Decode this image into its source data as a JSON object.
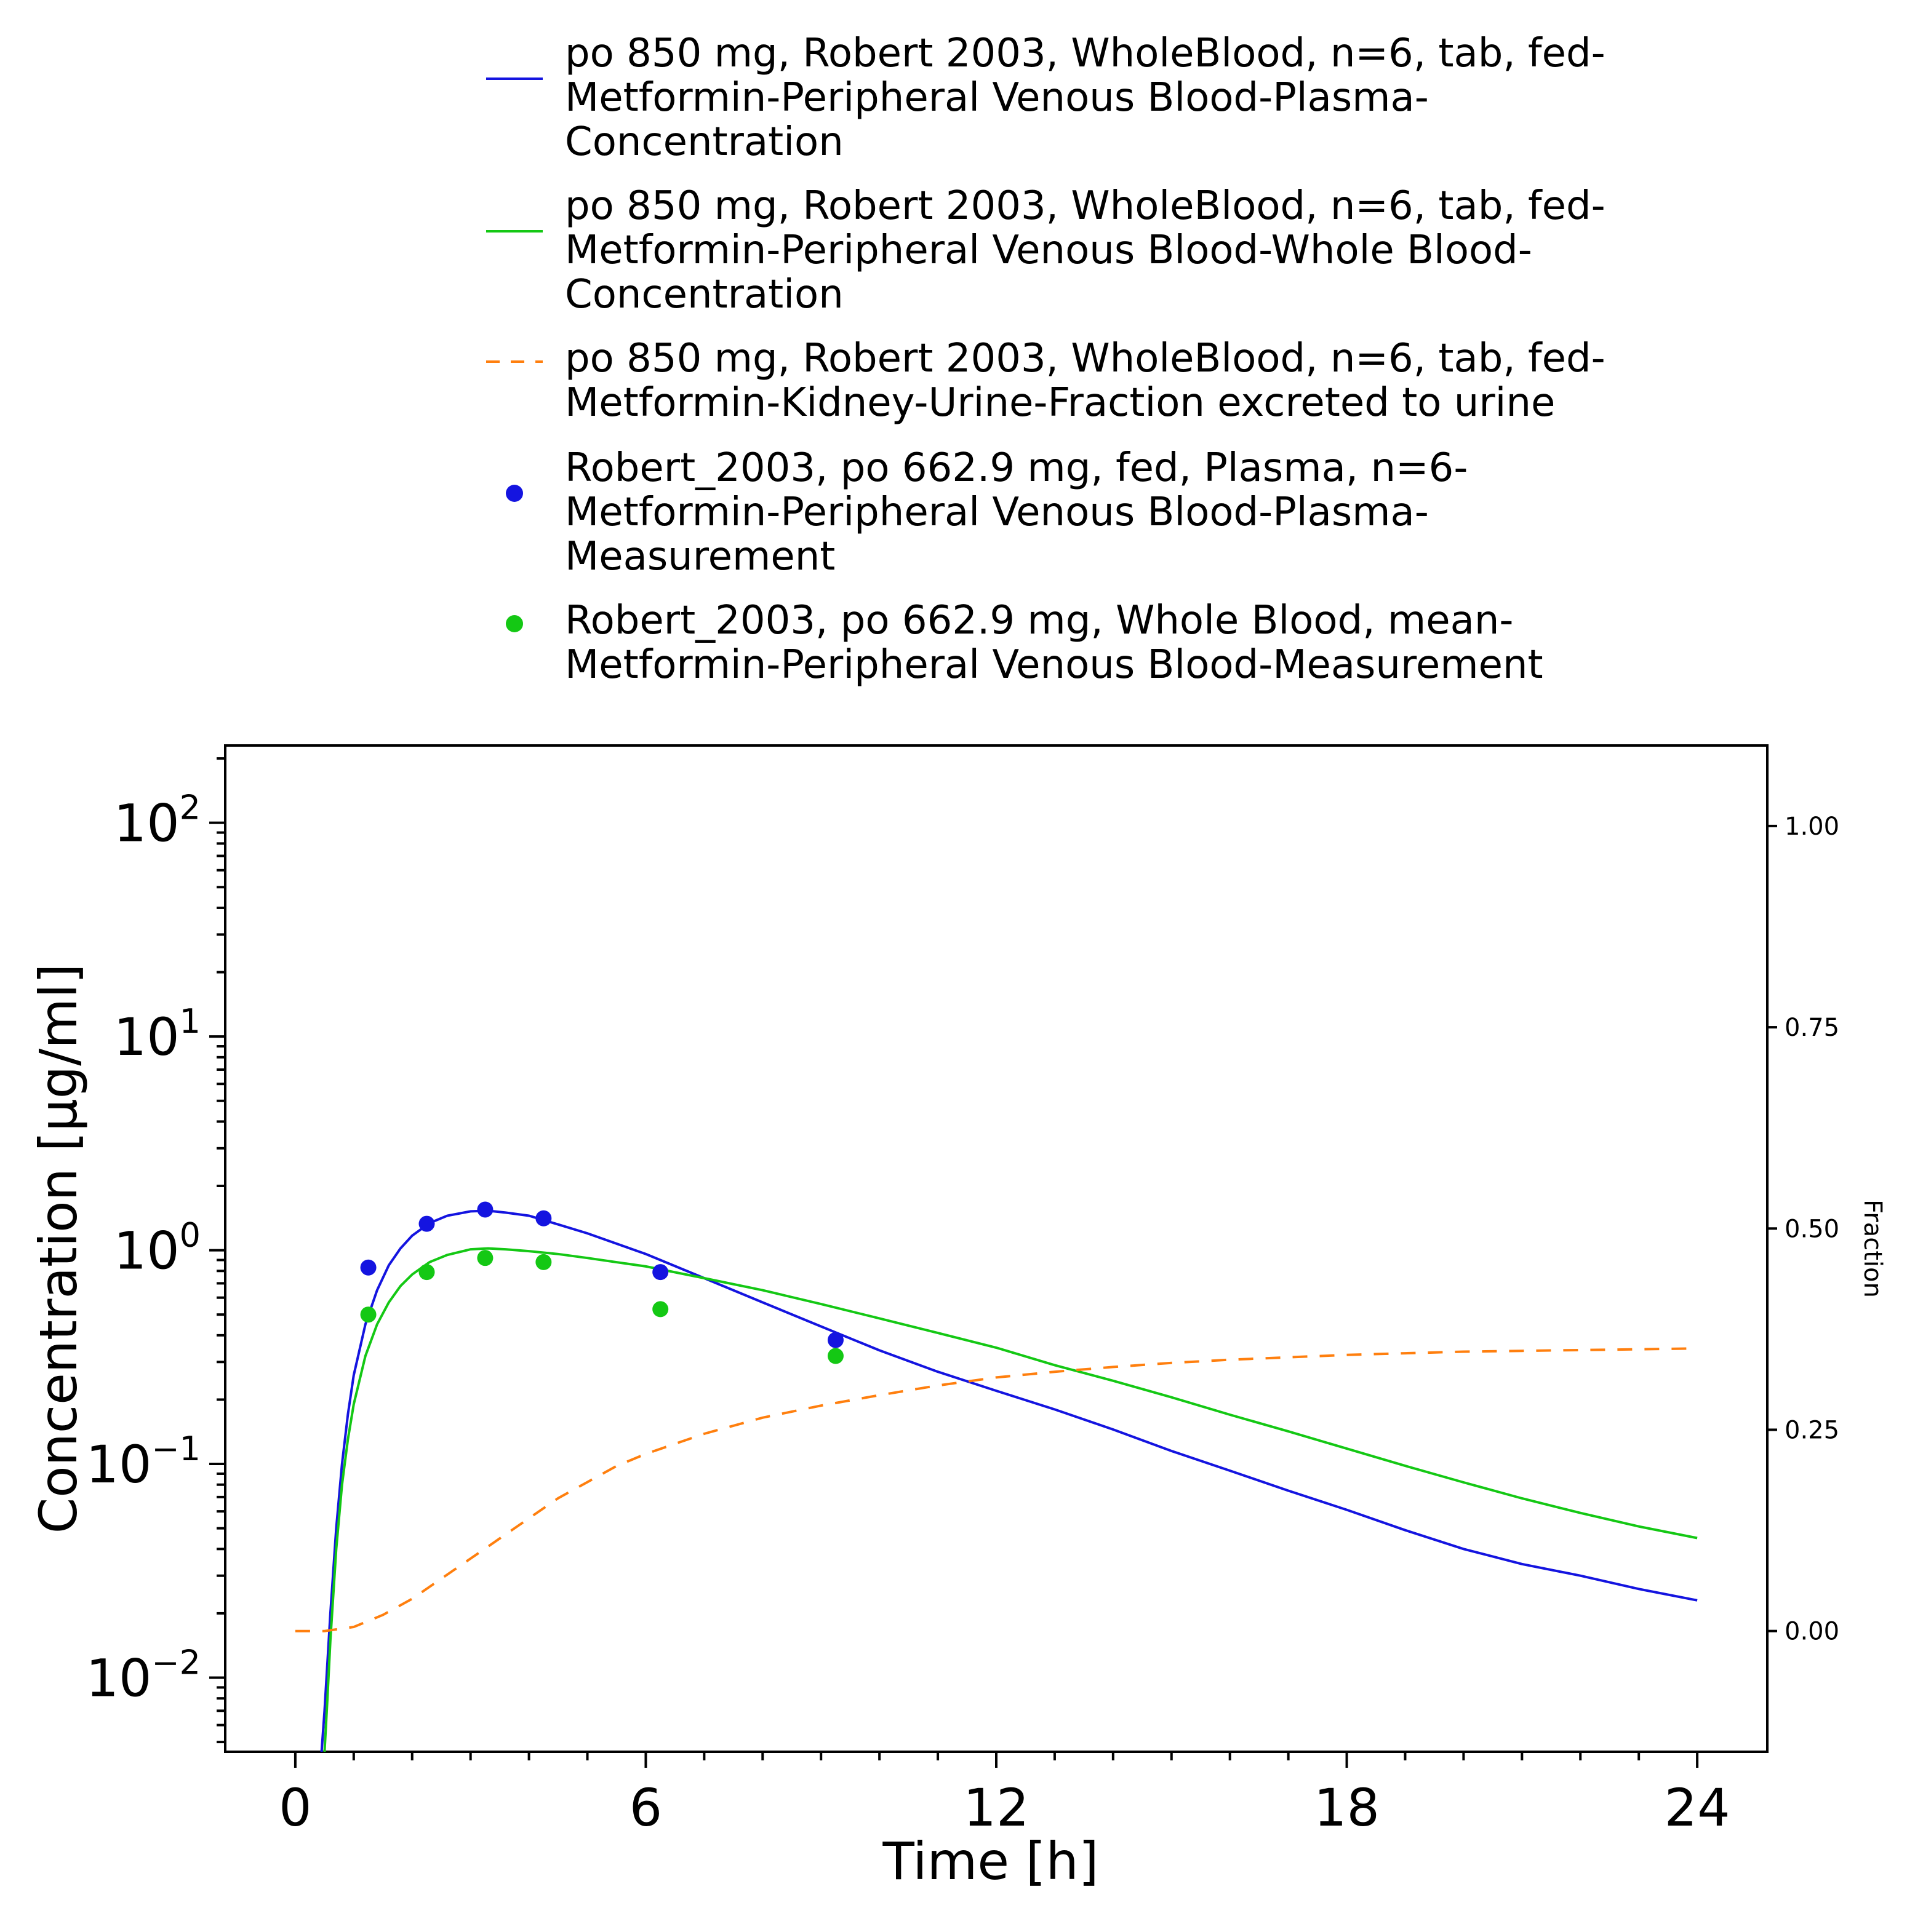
{
  "chart_data": {
    "type": "line",
    "xlabel": "Time [h]",
    "ylabel": "Concentration [µg/ml]",
    "y2label": "Fraction",
    "xlim": [
      -1.2,
      25.2
    ],
    "xticks": [
      "0",
      "6",
      "12",
      "18",
      "24"
    ],
    "xtick_values": [
      0,
      6,
      12,
      18,
      24
    ],
    "yscale": "log",
    "ylim": [
      0.0045,
      230
    ],
    "yticks": [
      {
        "base": "10",
        "exp": "2",
        "value": 100
      },
      {
        "base": "10",
        "exp": "1",
        "value": 10
      },
      {
        "base": "10",
        "exp": "0",
        "value": 1
      },
      {
        "base": "10",
        "exp": "−1",
        "value": 0.1
      },
      {
        "base": "10",
        "exp": "−2",
        "value": 0.01
      }
    ],
    "y2lim": [
      -0.15,
      1.1
    ],
    "y2ticks": [
      "1.00",
      "0.75",
      "0.50",
      "0.25",
      "0.00"
    ],
    "y2tick_values": [
      1.0,
      0.75,
      0.5,
      0.25,
      0.0
    ],
    "grid": false,
    "legend_position": "top",
    "series": [
      {
        "name": "po 850 mg, Robert 2003, WholeBlood, n=6, tab, fed-Metformin-Peripheral Venous Blood-Plasma-Concentration",
        "legend_lines": [
          "po 850 mg, Robert 2003, WholeBlood, n=6, tab, fed-",
          "Metformin-Peripheral Venous Blood-Plasma-",
          "Concentration"
        ],
        "kind": "line",
        "axis": "left",
        "color": "#1414e0",
        "dash": "",
        "x": [
          0.45,
          0.5,
          0.6,
          0.7,
          0.8,
          0.9,
          1.0,
          1.2,
          1.4,
          1.6,
          1.8,
          2.0,
          2.3,
          2.6,
          3.0,
          3.3,
          3.6,
          4.0,
          4.5,
          5.0,
          6.0,
          7.0,
          8.0,
          9.0,
          10.0,
          11.0,
          12.0,
          13.0,
          14.0,
          15.0,
          16.0,
          17.0,
          18.0,
          19.0,
          20.0,
          21.0,
          22.0,
          23.0,
          24.0
        ],
        "y": [
          0.0045,
          0.007,
          0.02,
          0.05,
          0.1,
          0.17,
          0.26,
          0.45,
          0.65,
          0.85,
          1.02,
          1.17,
          1.34,
          1.45,
          1.52,
          1.53,
          1.5,
          1.45,
          1.32,
          1.2,
          0.96,
          0.74,
          0.57,
          0.44,
          0.34,
          0.27,
          0.22,
          0.18,
          0.145,
          0.115,
          0.093,
          0.075,
          0.061,
          0.049,
          0.04,
          0.034,
          0.03,
          0.026,
          0.023
        ]
      },
      {
        "name": "po 850 mg, Robert 2003, WholeBlood, n=6, tab, fed-Metformin-Peripheral Venous Blood-Whole Blood-Concentration",
        "legend_lines": [
          "po 850 mg, Robert 2003, WholeBlood, n=6, tab, fed-",
          "Metformin-Peripheral Venous Blood-Whole Blood-",
          "Concentration"
        ],
        "kind": "line",
        "axis": "left",
        "color": "#14c814",
        "dash": "",
        "x": [
          0.5,
          0.55,
          0.6,
          0.7,
          0.8,
          0.9,
          1.0,
          1.2,
          1.4,
          1.6,
          1.8,
          2.0,
          2.3,
          2.6,
          3.0,
          3.3,
          3.6,
          4.0,
          4.5,
          5.0,
          6.0,
          7.0,
          8.0,
          9.0,
          10.0,
          11.0,
          12.0,
          13.0,
          14.0,
          15.0,
          16.0,
          17.0,
          18.0,
          19.0,
          20.0,
          21.0,
          22.0,
          23.0,
          24.0
        ],
        "y": [
          0.0045,
          0.008,
          0.015,
          0.04,
          0.08,
          0.13,
          0.19,
          0.32,
          0.45,
          0.57,
          0.68,
          0.77,
          0.88,
          0.95,
          1.01,
          1.02,
          1.01,
          0.99,
          0.96,
          0.92,
          0.84,
          0.74,
          0.65,
          0.56,
          0.48,
          0.41,
          0.35,
          0.29,
          0.245,
          0.205,
          0.17,
          0.142,
          0.118,
          0.098,
          0.082,
          0.069,
          0.059,
          0.051,
          0.045
        ]
      },
      {
        "name": "po 850 mg, Robert 2003, WholeBlood, n=6, tab, fed-Metformin-Kidney-Urine-Fraction excreted to urine",
        "legend_lines": [
          "po 850 mg, Robert 2003, WholeBlood, n=6, tab, fed-",
          "Metformin-Kidney-Urine-Fraction excreted to urine"
        ],
        "kind": "line",
        "axis": "right",
        "color": "#ff7f0e",
        "dash": "24,20",
        "x": [
          0,
          0.5,
          1.0,
          1.5,
          2.0,
          2.5,
          3.0,
          3.5,
          4.0,
          4.5,
          5.0,
          5.5,
          6.0,
          7.0,
          8.0,
          9.0,
          10.0,
          11.0,
          12.0,
          13.0,
          14.0,
          15.0,
          16.0,
          17.0,
          18.0,
          19.0,
          20.0,
          21.0,
          22.0,
          23.0,
          24.0
        ],
        "y": [
          0.0,
          0.0,
          0.005,
          0.02,
          0.04,
          0.065,
          0.09,
          0.115,
          0.14,
          0.165,
          0.185,
          0.205,
          0.22,
          0.245,
          0.265,
          0.28,
          0.293,
          0.305,
          0.315,
          0.322,
          0.328,
          0.333,
          0.337,
          0.34,
          0.343,
          0.345,
          0.347,
          0.348,
          0.349,
          0.35,
          0.351
        ]
      },
      {
        "name": "Robert_2003, po 662.9 mg, fed, Plasma, n=6-Metformin-Peripheral Venous Blood-Plasma-Measurement",
        "legend_lines": [
          "Robert_2003, po 662.9 mg, fed, Plasma, n=6-",
          "Metformin-Peripheral Venous Blood-Plasma-",
          "Measurement"
        ],
        "kind": "scatter",
        "axis": "left",
        "color": "#1414e0",
        "x": [
          1.25,
          2.25,
          3.25,
          4.25,
          6.25,
          9.25
        ],
        "y": [
          0.83,
          1.33,
          1.55,
          1.41,
          0.79,
          0.38
        ]
      },
      {
        "name": "Robert_2003, po 662.9 mg, Whole Blood, mean-Metformin-Peripheral Venous Blood-Measurement",
        "legend_lines": [
          "Robert_2003, po 662.9 mg, Whole Blood, mean-",
          "Metformin-Peripheral Venous Blood-Measurement"
        ],
        "kind": "scatter",
        "axis": "left",
        "color": "#14c814",
        "x": [
          1.25,
          2.25,
          3.25,
          4.25,
          6.25,
          9.25
        ],
        "y": [
          0.5,
          0.79,
          0.92,
          0.88,
          0.53,
          0.32
        ]
      }
    ]
  }
}
